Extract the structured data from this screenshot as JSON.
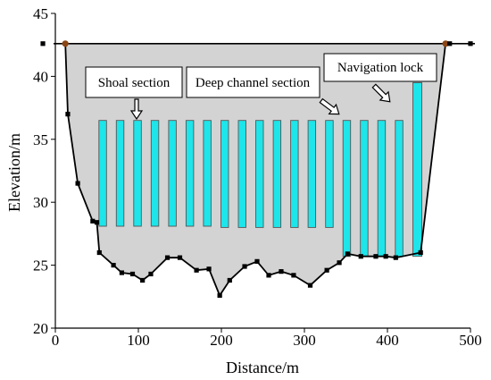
{
  "chart_data": {
    "type": "area",
    "xlabel": "Distance/m",
    "ylabel": "Elevation/m",
    "xlim": [
      0,
      500
    ],
    "ylim": [
      20,
      45
    ],
    "xticks": [
      0,
      100,
      200,
      300,
      400,
      500
    ],
    "yticks": [
      20,
      25,
      30,
      35,
      40,
      45
    ],
    "grid": false,
    "water_level": 42.6,
    "riverbed_profile": {
      "x": [
        -15,
        12,
        15,
        27,
        45,
        50,
        53,
        70,
        80,
        93,
        105,
        115,
        135,
        150,
        170,
        185,
        198,
        210,
        228,
        243,
        257,
        272,
        287,
        307,
        327,
        342,
        352,
        368,
        386,
        398,
        410,
        440,
        470,
        475,
        500
      ],
      "y": [
        42.6,
        42.6,
        37.0,
        31.5,
        28.5,
        28.4,
        26.0,
        25.0,
        24.4,
        24.3,
        23.8,
        24.3,
        25.6,
        25.6,
        24.6,
        24.7,
        22.6,
        23.8,
        24.9,
        25.3,
        24.2,
        24.5,
        24.2,
        23.4,
        24.6,
        25.2,
        25.9,
        25.7,
        25.7,
        25.7,
        25.6,
        26.0,
        42.6,
        42.6,
        42.6
      ]
    },
    "pillars": {
      "shoal": {
        "x": [
          57,
          78,
          99,
          120,
          141,
          162,
          183
        ],
        "bottom": 28.1,
        "top": 36.5
      },
      "deep": {
        "x": [
          204,
          225,
          246,
          267,
          288,
          309,
          330
        ],
        "bottom": 28.0,
        "top": 36.5
      },
      "navigation": {
        "x": [
          351,
          372,
          393,
          414
        ],
        "bottom": 25.7,
        "top": 36.5
      },
      "lock_wall": {
        "x": 436,
        "bottom": 25.7,
        "top": 39.5
      }
    },
    "annotations": [
      "Shoal section",
      "Deep channel section",
      "Navigation lock"
    ]
  },
  "labels": {
    "shoal": "Shoal section",
    "deep": "Deep channel section",
    "lock": "Navigation lock",
    "xaxis": "Distance/m",
    "yaxis": "Elevation/m"
  },
  "colors": {
    "fill": "#d3d3d3",
    "pillar": "#1ee5ea",
    "pillar_border": "#555555",
    "line": "#000000",
    "marker": "#000000",
    "endpoint": "#8b4513"
  }
}
